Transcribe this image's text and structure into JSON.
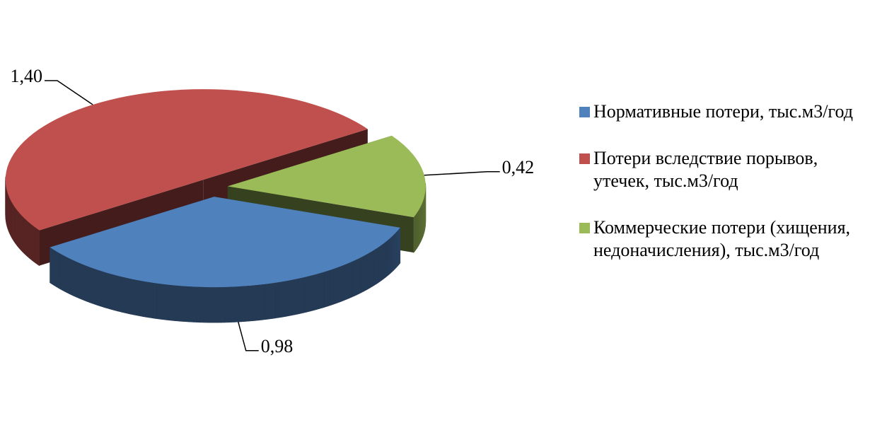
{
  "chart_data": {
    "type": "pie",
    "categories": [
      "Нормативные потери, тыс.м3/год",
      "Потери вследствие порывов, утечек, тыс.м3/год",
      "Коммерческие потери (хищения, недоначисления), тыс.м3/год"
    ],
    "values": [
      0.98,
      1.4,
      0.42
    ],
    "value_labels": [
      "0,98",
      "1,40",
      "0,42"
    ],
    "colors": [
      "#4f81bd",
      "#c0504d",
      "#9bbb59"
    ],
    "legend": "right"
  }
}
